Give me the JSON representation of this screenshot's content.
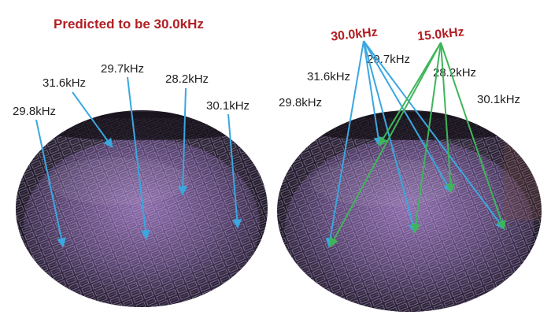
{
  "left_panel": {
    "title": "Predicted to be 30.0kHz",
    "labels": [
      "29.8kHz",
      "31.6kHz",
      "29.7kHz",
      "28.2kHz",
      "30.1kHz"
    ]
  },
  "right_panel": {
    "predicted": [
      "30.0kHz",
      "15.0kHz"
    ],
    "labels": [
      "29.8kHz",
      "31.6kHz",
      "29.7kHz",
      "28.2kHz",
      "30.1kHz"
    ]
  },
  "colors": {
    "title": "#b11f24",
    "blue_arrow": "#3aa7e0",
    "green_arrow": "#3fb55b",
    "wafer_dark": "#2a2234",
    "wafer_purple": "#7a5a98"
  }
}
